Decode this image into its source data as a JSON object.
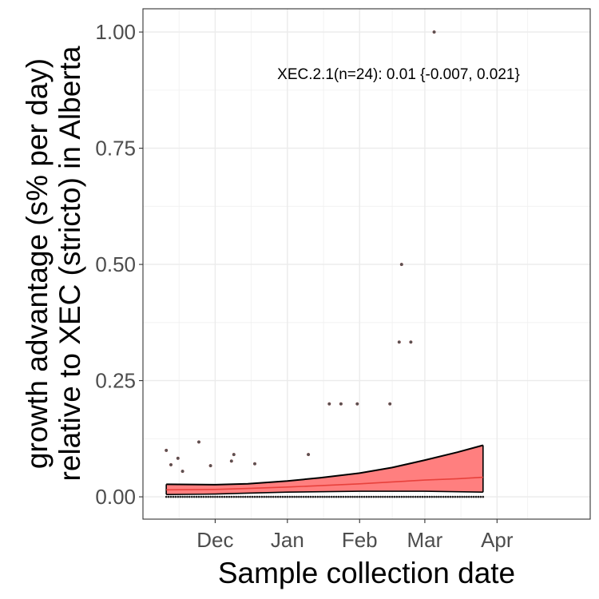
{
  "chart_data": {
    "type": "scatter",
    "xlabel": "Sample collection date",
    "ylabel_line1": "growth advantage (s% per day)",
    "ylabel_line2": "relative to XEC (stricto) in Alberta",
    "annotation": "XEC.2.1(n=24): 0.01 {-0.007, 0.021}",
    "x_ticks": [
      {
        "label": "Dec",
        "date": "2024-12-01"
      },
      {
        "label": "Jan",
        "date": "2025-01-01"
      },
      {
        "label": "Feb",
        "date": "2025-02-01"
      },
      {
        "label": "Mar",
        "date": "2025-03-01"
      },
      {
        "label": "Apr",
        "date": "2025-04-01"
      }
    ],
    "y_ticks": [
      "0.00",
      "0.25",
      "0.50",
      "0.75",
      "1.00"
    ],
    "xlim": [
      "2024-10-31",
      "2025-05-11"
    ],
    "ylim": [
      -0.048,
      1.05
    ],
    "grid": true,
    "colors": {
      "fit_line": "#e8413c",
      "ribbon": "#ff7f7f",
      "band_edge": "#000000",
      "points": "#555555"
    },
    "points_nonzero": [
      {
        "date": "2024-11-10",
        "y": 0.1
      },
      {
        "date": "2024-11-12",
        "y": 0.069
      },
      {
        "date": "2024-11-15",
        "y": 0.083
      },
      {
        "date": "2024-11-17",
        "y": 0.055
      },
      {
        "date": "2024-11-24",
        "y": 0.118
      },
      {
        "date": "2024-11-29",
        "y": 0.067
      },
      {
        "date": "2024-12-08",
        "y": 0.077
      },
      {
        "date": "2024-12-09",
        "y": 0.091
      },
      {
        "date": "2024-12-18",
        "y": 0.071
      },
      {
        "date": "2025-01-10",
        "y": 0.091
      },
      {
        "date": "2025-01-19",
        "y": 0.2
      },
      {
        "date": "2025-01-24",
        "y": 0.2
      },
      {
        "date": "2025-01-31",
        "y": 0.2
      },
      {
        "date": "2025-02-14",
        "y": 0.2
      },
      {
        "date": "2025-02-18",
        "y": 0.333
      },
      {
        "date": "2025-02-19",
        "y": 0.5
      },
      {
        "date": "2025-02-23",
        "y": 0.333
      },
      {
        "date": "2025-03-05",
        "y": 1.0
      }
    ],
    "points_zero_range": [
      "2024-11-10",
      "2025-03-26"
    ],
    "fit": [
      {
        "date": "2024-11-10",
        "y": 0.015,
        "lower": 0.005,
        "upper": 0.027
      },
      {
        "date": "2024-12-01",
        "y": 0.016,
        "lower": 0.006,
        "upper": 0.026
      },
      {
        "date": "2024-12-15",
        "y": 0.018,
        "lower": 0.008,
        "upper": 0.028
      },
      {
        "date": "2025-01-01",
        "y": 0.021,
        "lower": 0.01,
        "upper": 0.034
      },
      {
        "date": "2025-01-15",
        "y": 0.024,
        "lower": 0.011,
        "upper": 0.041
      },
      {
        "date": "2025-02-01",
        "y": 0.028,
        "lower": 0.012,
        "upper": 0.051
      },
      {
        "date": "2025-02-15",
        "y": 0.032,
        "lower": 0.012,
        "upper": 0.063
      },
      {
        "date": "2025-03-01",
        "y": 0.036,
        "lower": 0.012,
        "upper": 0.079
      },
      {
        "date": "2025-03-15",
        "y": 0.039,
        "lower": 0.011,
        "upper": 0.096
      },
      {
        "date": "2025-03-26",
        "y": 0.042,
        "lower": 0.01,
        "upper": 0.111
      }
    ]
  }
}
